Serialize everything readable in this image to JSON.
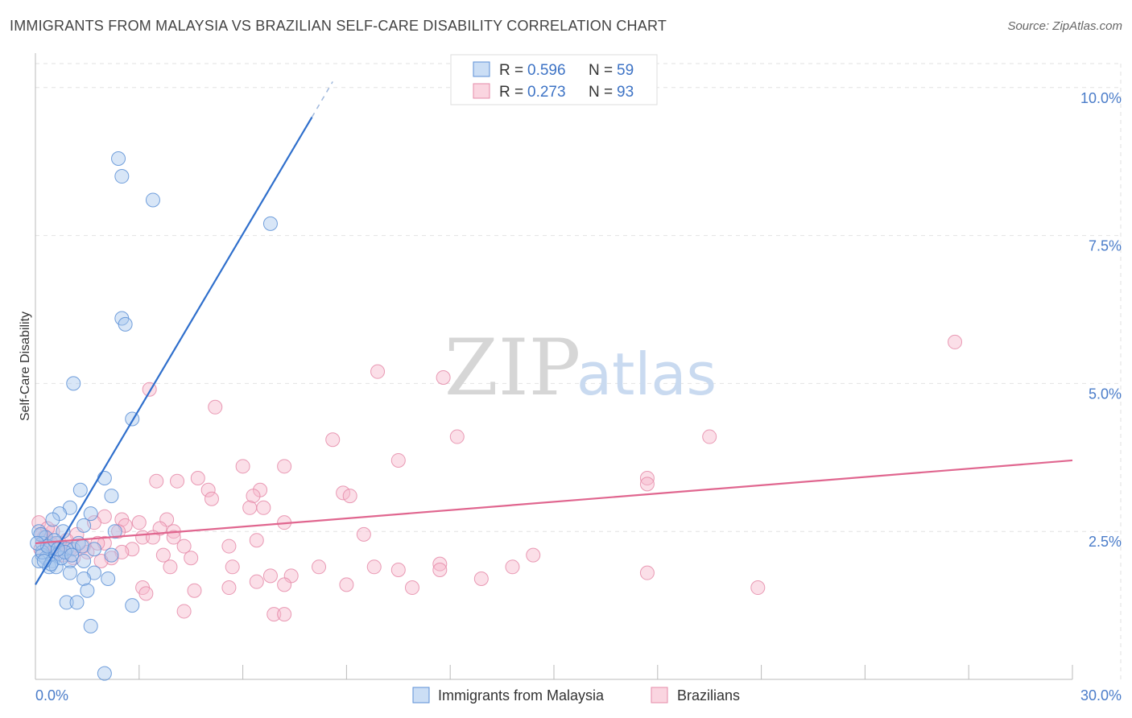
{
  "title": "IMMIGRANTS FROM MALAYSIA VS BRAZILIAN SELF-CARE DISABILITY CORRELATION CHART",
  "source": "Source: ZipAtlas.com",
  "watermark": {
    "zip": "ZIP",
    "atlas": "atlas"
  },
  "colors": {
    "blue_fill": "#a9c8ee",
    "blue_stroke": "#5b8fd6",
    "blue_line": "#2f6fcc",
    "pink_fill": "#f6b9cc",
    "pink_stroke": "#e58aa8",
    "pink_line": "#e0668f",
    "grid": "#e2e2e2",
    "tick_text": "#4a7cc9"
  },
  "legend": {
    "series1": {
      "r_label": "R = ",
      "r_value": "0.596",
      "n_label": "N = ",
      "n_value": "59"
    },
    "series2": {
      "r_label": "R = ",
      "r_value": "0.273",
      "n_label": "N = ",
      "n_value": "93"
    }
  },
  "bottom_legend": [
    "Immigrants from Malaysia",
    "Brazilians"
  ],
  "chart_data": {
    "type": "scatter",
    "title": "IMMIGRANTS FROM MALAYSIA VS BRAZILIAN SELF-CARE DISABILITY CORRELATION CHART",
    "xlabel": "",
    "ylabel": "Self-Care Disability",
    "xlim": [
      0,
      30
    ],
    "ylim": [
      0,
      10.5
    ],
    "x_tick_labels": [
      "0.0%",
      "30.0%"
    ],
    "y_ticks": [
      2.5,
      5.0,
      7.5,
      10.0
    ],
    "y_tick_labels": [
      "2.5%",
      "5.0%",
      "7.5%",
      "10.0%"
    ],
    "grid": true,
    "series": [
      {
        "name": "Immigrants from Malaysia",
        "color": "#5b8fd6",
        "trend": {
          "x": [
            0,
            8.0
          ],
          "y": [
            1.6,
            9.5
          ],
          "dashed_to": [
            8.6,
            10.1
          ]
        },
        "points": [
          [
            2.4,
            8.8
          ],
          [
            2.5,
            8.5
          ],
          [
            3.4,
            8.1
          ],
          [
            6.8,
            7.7
          ],
          [
            2.5,
            6.1
          ],
          [
            2.6,
            6.0
          ],
          [
            1.1,
            5.0
          ],
          [
            2.8,
            4.4
          ],
          [
            2.0,
            3.4
          ],
          [
            1.3,
            3.2
          ],
          [
            2.2,
            3.1
          ],
          [
            1.0,
            2.9
          ],
          [
            1.6,
            2.8
          ],
          [
            0.7,
            2.8
          ],
          [
            0.5,
            2.7
          ],
          [
            1.4,
            2.6
          ],
          [
            0.8,
            2.5
          ],
          [
            2.3,
            2.5
          ],
          [
            0.1,
            2.5
          ],
          [
            0.3,
            2.4
          ],
          [
            0.2,
            2.3
          ],
          [
            0.6,
            2.3
          ],
          [
            0.9,
            2.2
          ],
          [
            1.1,
            2.2
          ],
          [
            1.7,
            2.2
          ],
          [
            0.4,
            2.2
          ],
          [
            0.6,
            2.1
          ],
          [
            0.2,
            2.1
          ],
          [
            0.3,
            2.05
          ],
          [
            0.5,
            2.0
          ],
          [
            1.0,
            2.0
          ],
          [
            1.4,
            2.0
          ],
          [
            0.1,
            2.0
          ],
          [
            2.2,
            2.1
          ],
          [
            0.4,
            1.9
          ],
          [
            0.6,
            1.9
          ],
          [
            1.0,
            1.8
          ],
          [
            1.7,
            1.8
          ],
          [
            1.4,
            1.7
          ],
          [
            2.1,
            1.7
          ],
          [
            1.5,
            1.5
          ],
          [
            0.9,
            1.3
          ],
          [
            1.2,
            1.3
          ],
          [
            2.8,
            1.25
          ],
          [
            1.6,
            0.9
          ],
          [
            2.0,
            0.1
          ],
          [
            0.2,
            2.15
          ],
          [
            0.35,
            2.25
          ],
          [
            0.55,
            2.35
          ],
          [
            0.75,
            2.05
          ],
          [
            0.15,
            2.45
          ],
          [
            0.45,
            1.95
          ],
          [
            0.85,
            2.15
          ],
          [
            1.25,
            2.3
          ],
          [
            0.25,
            2.0
          ],
          [
            0.05,
            2.3
          ],
          [
            0.65,
            2.2
          ],
          [
            1.05,
            2.1
          ],
          [
            1.35,
            2.25
          ]
        ]
      },
      {
        "name": "Brazilians",
        "color": "#e58aa8",
        "trend": {
          "x": [
            0,
            30
          ],
          "y": [
            2.3,
            3.7
          ]
        },
        "points": [
          [
            26.6,
            5.7
          ],
          [
            9.9,
            5.2
          ],
          [
            11.8,
            5.1
          ],
          [
            3.3,
            4.9
          ],
          [
            5.2,
            4.6
          ],
          [
            19.5,
            4.1
          ],
          [
            8.6,
            4.05
          ],
          [
            12.2,
            4.1
          ],
          [
            10.5,
            3.7
          ],
          [
            6.0,
            3.6
          ],
          [
            7.2,
            3.6
          ],
          [
            4.7,
            3.4
          ],
          [
            3.5,
            3.35
          ],
          [
            4.1,
            3.35
          ],
          [
            17.7,
            3.4
          ],
          [
            17.7,
            3.3
          ],
          [
            6.5,
            3.2
          ],
          [
            5.0,
            3.2
          ],
          [
            8.9,
            3.15
          ],
          [
            9.1,
            3.1
          ],
          [
            6.3,
            3.1
          ],
          [
            5.1,
            3.05
          ],
          [
            6.2,
            2.9
          ],
          [
            6.6,
            2.9
          ],
          [
            2.0,
            2.75
          ],
          [
            2.5,
            2.7
          ],
          [
            3.8,
            2.7
          ],
          [
            1.7,
            2.65
          ],
          [
            7.2,
            2.65
          ],
          [
            3.0,
            2.65
          ],
          [
            2.6,
            2.6
          ],
          [
            3.6,
            2.55
          ],
          [
            4.0,
            2.5
          ],
          [
            2.4,
            2.5
          ],
          [
            1.2,
            2.45
          ],
          [
            3.1,
            2.4
          ],
          [
            9.5,
            2.45
          ],
          [
            3.4,
            2.4
          ],
          [
            4.0,
            2.4
          ],
          [
            6.4,
            2.35
          ],
          [
            2.0,
            2.3
          ],
          [
            1.8,
            2.3
          ],
          [
            1.4,
            2.25
          ],
          [
            4.3,
            2.25
          ],
          [
            5.6,
            2.25
          ],
          [
            2.8,
            2.2
          ],
          [
            2.5,
            2.15
          ],
          [
            1.5,
            2.15
          ],
          [
            3.7,
            2.1
          ],
          [
            2.2,
            2.05
          ],
          [
            4.5,
            2.05
          ],
          [
            14.4,
            2.1
          ],
          [
            1.1,
            2.05
          ],
          [
            1.9,
            2.0
          ],
          [
            11.7,
            1.95
          ],
          [
            3.9,
            1.9
          ],
          [
            5.7,
            1.9
          ],
          [
            8.2,
            1.9
          ],
          [
            9.8,
            1.9
          ],
          [
            10.5,
            1.85
          ],
          [
            11.7,
            1.85
          ],
          [
            13.8,
            1.9
          ],
          [
            17.7,
            1.8
          ],
          [
            6.8,
            1.75
          ],
          [
            7.4,
            1.75
          ],
          [
            12.9,
            1.7
          ],
          [
            6.4,
            1.65
          ],
          [
            7.2,
            1.6
          ],
          [
            9.0,
            1.6
          ],
          [
            3.1,
            1.55
          ],
          [
            5.6,
            1.55
          ],
          [
            10.9,
            1.55
          ],
          [
            20.9,
            1.55
          ],
          [
            4.6,
            1.5
          ],
          [
            3.2,
            1.45
          ],
          [
            4.3,
            1.15
          ],
          [
            6.9,
            1.1
          ],
          [
            7.2,
            1.1
          ],
          [
            0.1,
            2.65
          ],
          [
            0.2,
            2.45
          ],
          [
            0.3,
            2.35
          ],
          [
            0.4,
            2.25
          ],
          [
            0.5,
            2.5
          ],
          [
            0.6,
            2.2
          ],
          [
            0.7,
            2.3
          ],
          [
            0.8,
            2.1
          ],
          [
            0.9,
            2.35
          ],
          [
            0.15,
            2.2
          ],
          [
            0.35,
            2.55
          ],
          [
            0.55,
            2.15
          ],
          [
            0.25,
            2.4
          ],
          [
            0.45,
            2.3
          ],
          [
            1.0,
            2.2
          ]
        ]
      }
    ]
  }
}
